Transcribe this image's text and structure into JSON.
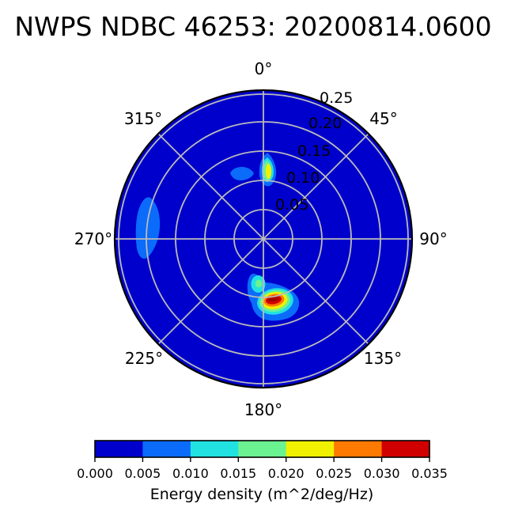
{
  "title": "NWPS NDBC 46253: 20200814.0600",
  "polar_axis": {
    "angle_ticks": [
      "0°",
      "45°",
      "90°",
      "135°",
      "180°",
      "225°",
      "270°",
      "315°"
    ],
    "radius_ticks": [
      "0.05",
      "0.10",
      "0.15",
      "0.20",
      "0.25"
    ]
  },
  "colorbar": {
    "ticks": [
      "0.000",
      "0.005",
      "0.010",
      "0.015",
      "0.020",
      "0.025",
      "0.030",
      "0.035"
    ],
    "label": "Energy density (m^2/deg/Hz)",
    "segment_colors": [
      "#0000CC",
      "#0B6BFB",
      "#22E1E1",
      "#6BF291",
      "#F0F000",
      "#FF7A00",
      "#D00000"
    ],
    "over_color": "#A00000"
  },
  "colors": {
    "figure_background": "#ffffff",
    "plot_background": "#0000CC",
    "grid": "#BBBBBB",
    "outline": "#000000",
    "text": "#000000"
  },
  "chart_data": {
    "type": "heatmap",
    "subtype": "polar directional wave energy spectrum (filled contours, jet colormap)",
    "title": "NWPS NDBC 46253: 20200814.0600",
    "angular_axis": {
      "unit": "degrees",
      "zero_position": "top",
      "direction": "clockwise",
      "ticks": [
        0,
        45,
        90,
        135,
        180,
        225,
        270,
        315
      ]
    },
    "radial_axis": {
      "ticks": [
        0.05,
        0.1,
        0.15,
        0.2,
        0.25
      ],
      "max": 0.26,
      "label_angle_deg": 22.5
    },
    "energy_scale": {
      "label": "Energy density (m^2/deg/Hz)",
      "levels": [
        0.0,
        0.005,
        0.01,
        0.015,
        0.02,
        0.025,
        0.03,
        0.035
      ],
      "colors": [
        "#0000CC",
        "#0B6BFB",
        "#22E1E1",
        "#6BF291",
        "#F0F000",
        "#FF7A00",
        "#D00000"
      ],
      "over_color": "#A00000",
      "background_value": 0.0
    },
    "features": [
      {
        "name": "south sea peak",
        "direction_deg": 170,
        "radius": 0.11,
        "peak_energy": 0.036,
        "description": "largest blob; dark-red core (>0.035) with red/orange/yellow/green/cyan/light-blue rings; cyan tail extends toward 187 deg at r 0.085 containing a small green spot (~0.017)"
      },
      {
        "name": "north swell peak",
        "direction_deg": 3,
        "radius": 0.115,
        "peak_energy": 0.022,
        "description": "small teardrop with yellow core (0.020-0.025) ringed by green, cyan and light blue"
      },
      {
        "name": "north secondary patch",
        "direction_deg": 352,
        "radius": 0.09,
        "peak_energy": 0.007,
        "description": "small light-blue patch (0.005-0.010) just west of the north peak"
      },
      {
        "name": "west low-energy band",
        "direction_deg": 279,
        "radius": 0.2,
        "peak_energy": 0.007,
        "description": "elongated light-blue crescent (0.005-0.010) spanning r 0.155-0.245 near 270-285 deg"
      }
    ]
  }
}
